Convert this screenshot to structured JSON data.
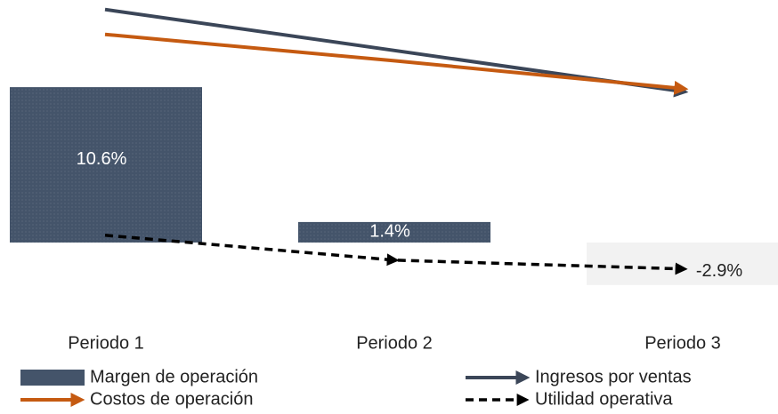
{
  "chart_data": {
    "type": "bar",
    "categories": [
      "Periodo 1",
      "Periodo 2",
      "Periodo 3"
    ],
    "ylim": [
      -5,
      16.5
    ],
    "series": [
      {
        "name": "Margen de operación",
        "type": "bar",
        "colors": [
          "#44546a",
          "#44546a",
          "#f2f2f2"
        ],
        "color": "#44546a",
        "values": [
          10.6,
          1.4,
          -2.9
        ],
        "value_labels": [
          "10.6%",
          "1.4%",
          "-2.9%"
        ]
      },
      {
        "name": "Ingresos por ventas",
        "type": "line",
        "color": "#3b4658",
        "values": [
          15.9,
          13.1,
          10.3
        ]
      },
      {
        "name": "Costos de operación",
        "type": "line",
        "color": "#c55a11",
        "values": [
          14.2,
          12.4,
          10.5
        ]
      },
      {
        "name": "Utilidad operativa",
        "type": "line",
        "color": "#000000",
        "dashed": true,
        "mid_arrow": true,
        "values": [
          0.5,
          -1.2,
          -1.8
        ]
      }
    ]
  }
}
